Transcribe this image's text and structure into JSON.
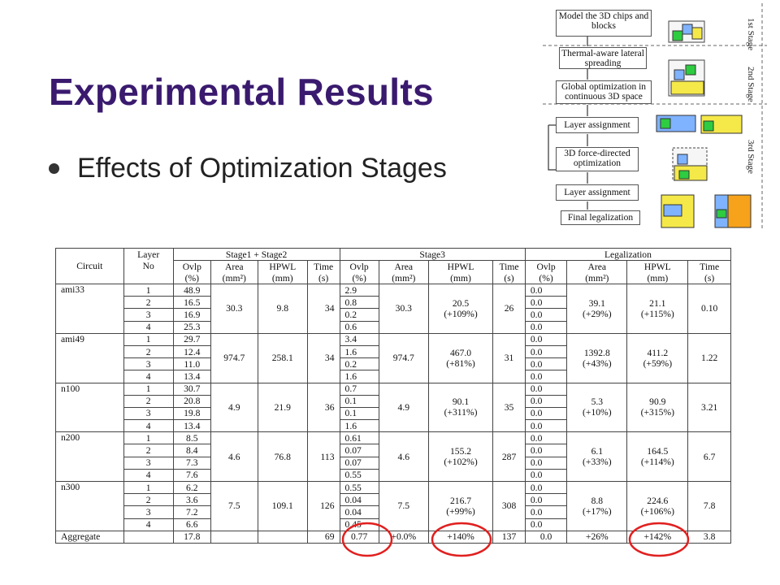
{
  "slide": {
    "title": "Experimental Results",
    "bullet": "Effects of Optimization Stages"
  },
  "flowchart": {
    "boxes": [
      "Model the 3D chips and blocks",
      "Thermal-aware lateral spreading",
      "Global optimization in continuous 3D space",
      "Layer assignment",
      "3D force-directed optimization",
      "Layer assignment",
      "Final legalization"
    ],
    "stages": [
      "1st Stage",
      "2nd Stage",
      "3rd Stage"
    ]
  },
  "table": {
    "h_circuit": "Circuit",
    "h_layer1": "Layer",
    "h_layer2": "No",
    "h_stage12": "Stage1 + Stage2",
    "h_stage3": "Stage3",
    "h_legal": "Legalization",
    "sub1": [
      "Ovlp",
      "Area",
      "HPWL",
      "Time"
    ],
    "sub2": [
      "(%)",
      "(mm²)",
      "(mm)",
      "(s)"
    ],
    "circuits": [
      {
        "name": "ami33",
        "ovlp12": [
          "48.9",
          "16.5",
          "16.9",
          "25.3"
        ],
        "area12": "30.3",
        "hpwl12": "9.8",
        "time12": "34",
        "ovlp3": [
          "2.9",
          "0.8",
          "0.2",
          "0.6"
        ],
        "area3": "30.3",
        "hpwl3": "20.5",
        "hpwl3_pct": "(+109%)",
        "time3": "26",
        "ovlpL": [
          "0.0",
          "0.0",
          "0.0",
          "0.0"
        ],
        "areaL": "39.1",
        "areaL_pct": "(+29%)",
        "hpwlL": "21.1",
        "hpwlL_pct": "(+115%)",
        "timeL": "0.10"
      },
      {
        "name": "ami49",
        "ovlp12": [
          "29.7",
          "12.4",
          "11.0",
          "13.4"
        ],
        "area12": "974.7",
        "hpwl12": "258.1",
        "time12": "34",
        "ovlp3": [
          "3.4",
          "1.6",
          "0.2",
          "1.6"
        ],
        "area3": "974.7",
        "hpwl3": "467.0",
        "hpwl3_pct": "(+81%)",
        "time3": "31",
        "ovlpL": [
          "0.0",
          "0.0",
          "0.0",
          "0.0"
        ],
        "areaL": "1392.8",
        "areaL_pct": "(+43%)",
        "hpwlL": "411.2",
        "hpwlL_pct": "(+59%)",
        "timeL": "1.22"
      },
      {
        "name": "n100",
        "ovlp12": [
          "30.7",
          "20.8",
          "19.8",
          "13.4"
        ],
        "area12": "4.9",
        "hpwl12": "21.9",
        "time12": "36",
        "ovlp3": [
          "0.7",
          "0.1",
          "0.1",
          "1.6"
        ],
        "area3": "4.9",
        "hpwl3": "90.1",
        "hpwl3_pct": "(+311%)",
        "time3": "35",
        "ovlpL": [
          "0.0",
          "0.0",
          "0.0",
          "0.0"
        ],
        "areaL": "5.3",
        "areaL_pct": "(+10%)",
        "hpwlL": "90.9",
        "hpwlL_pct": "(+315%)",
        "timeL": "3.21"
      },
      {
        "name": "n200",
        "ovlp12": [
          "8.5",
          "8.4",
          "7.3",
          "7.6"
        ],
        "area12": "4.6",
        "hpwl12": "76.8",
        "time12": "113",
        "ovlp3": [
          "0.61",
          "0.07",
          "0.07",
          "0.55"
        ],
        "area3": "4.6",
        "hpwl3": "155.2",
        "hpwl3_pct": "(+102%)",
        "time3": "287",
        "ovlpL": [
          "0.0",
          "0.0",
          "0.0",
          "0.0"
        ],
        "areaL": "6.1",
        "areaL_pct": "(+33%)",
        "hpwlL": "164.5",
        "hpwlL_pct": "(+114%)",
        "timeL": "6.7"
      },
      {
        "name": "n300",
        "ovlp12": [
          "6.2",
          "3.6",
          "7.2",
          "6.6"
        ],
        "area12": "7.5",
        "hpwl12": "109.1",
        "time12": "126",
        "ovlp3": [
          "0.55",
          "0.04",
          "0.04",
          "0.45"
        ],
        "area3": "7.5",
        "hpwl3": "216.7",
        "hpwl3_pct": "(+99%)",
        "time3": "308",
        "ovlpL": [
          "0.0",
          "0.0",
          "0.0",
          "0.0"
        ],
        "areaL": "8.8",
        "areaL_pct": "(+17%)",
        "hpwlL": "224.6",
        "hpwlL_pct": "(+106%)",
        "timeL": "7.8"
      }
    ],
    "aggregate": {
      "name": "Aggregate",
      "ovlp12": "17.8",
      "time12": "69",
      "ovlp3": "0.77",
      "area3": "+0.0%",
      "hpwl3": "+140%",
      "time3": "137",
      "ovlpL": "0.0",
      "areaL": "+26%",
      "hpwlL": "+142%",
      "timeL": "3.8"
    },
    "highlight_color": "#e0201f"
  }
}
